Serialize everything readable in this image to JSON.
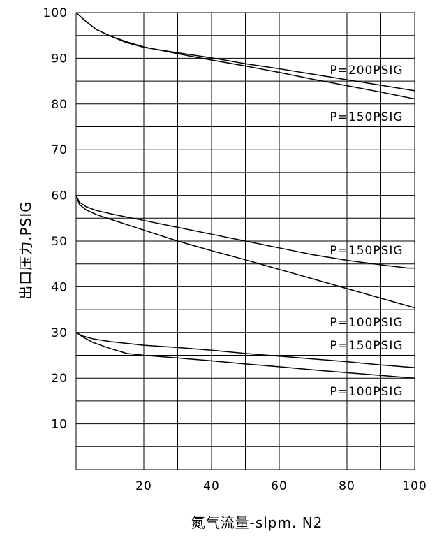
{
  "chart_data": {
    "type": "line",
    "title": "",
    "xlabel": "氮气流量-slpm. N2",
    "ylabel": "出口压力.PSIG",
    "xlim": [
      0,
      100
    ],
    "ylim": [
      0,
      100
    ],
    "x_ticks": [
      20,
      40,
      60,
      80,
      100
    ],
    "y_ticks": [
      10,
      20,
      30,
      40,
      50,
      60,
      70,
      80,
      90,
      100
    ],
    "grid": true,
    "legend": "none",
    "series": [
      {
        "label": "P=200PSIG",
        "points": [
          [
            0,
            100
          ],
          [
            3,
            98
          ],
          [
            6,
            96.3
          ],
          [
            10,
            94.9
          ],
          [
            15,
            93.4
          ],
          [
            20,
            92.4
          ],
          [
            30,
            91.2
          ],
          [
            40,
            90.1
          ],
          [
            50,
            88.8
          ],
          [
            60,
            87.7
          ],
          [
            70,
            86.5
          ],
          [
            80,
            85.3
          ],
          [
            90,
            84.1
          ],
          [
            100,
            82.9
          ]
        ]
      },
      {
        "label": "P=150PSIG",
        "points": [
          [
            0,
            100
          ],
          [
            3,
            98
          ],
          [
            6,
            96.3
          ],
          [
            10,
            94.9
          ],
          [
            15,
            93.6
          ],
          [
            20,
            92.5
          ],
          [
            30,
            91.0
          ],
          [
            40,
            89.6
          ],
          [
            50,
            88.3
          ],
          [
            60,
            86.9
          ],
          [
            70,
            85.4
          ],
          [
            80,
            84.0
          ],
          [
            90,
            82.6
          ],
          [
            100,
            81.1
          ]
        ]
      },
      {
        "label": "P=150PSIG",
        "points": [
          [
            0,
            60
          ],
          [
            1,
            58.5
          ],
          [
            3,
            57.5
          ],
          [
            6,
            56.7
          ],
          [
            10,
            56.0
          ],
          [
            20,
            54.5
          ],
          [
            30,
            53.0
          ],
          [
            40,
            51.5
          ],
          [
            50,
            50.0
          ],
          [
            60,
            48.5
          ],
          [
            70,
            47.0
          ],
          [
            80,
            45.8
          ],
          [
            90,
            44.8
          ],
          [
            98,
            44.1
          ],
          [
            100,
            44.1
          ]
        ]
      },
      {
        "label": "P=100PSIG",
        "points": [
          [
            0,
            60
          ],
          [
            1,
            58
          ],
          [
            3,
            56.8
          ],
          [
            6,
            55.8
          ],
          [
            10,
            54.8
          ],
          [
            20,
            52.4
          ],
          [
            30,
            50.0
          ],
          [
            40,
            47.9
          ],
          [
            50,
            45.9
          ],
          [
            60,
            43.8
          ],
          [
            70,
            41.7
          ],
          [
            80,
            39.6
          ],
          [
            90,
            37.5
          ],
          [
            100,
            35.4
          ]
        ]
      },
      {
        "label": "P=150PSIG",
        "points": [
          [
            0,
            30
          ],
          [
            2,
            29.2
          ],
          [
            5,
            28.6
          ],
          [
            10,
            28.0
          ],
          [
            20,
            27.2
          ],
          [
            30,
            26.7
          ],
          [
            40,
            26.1
          ],
          [
            50,
            25.4
          ],
          [
            60,
            24.8
          ],
          [
            70,
            24.2
          ],
          [
            80,
            23.6
          ],
          [
            90,
            22.9
          ],
          [
            100,
            22.3
          ]
        ]
      },
      {
        "label": "P=100PSIG",
        "points": [
          [
            0,
            30
          ],
          [
            2,
            29
          ],
          [
            5,
            27.8
          ],
          [
            10,
            26.5
          ],
          [
            15,
            25.4
          ],
          [
            20,
            25.0
          ],
          [
            30,
            24.4
          ],
          [
            40,
            23.8
          ],
          [
            50,
            23.1
          ],
          [
            60,
            22.5
          ],
          [
            70,
            21.8
          ],
          [
            80,
            21.2
          ],
          [
            90,
            20.6
          ],
          [
            100,
            20.0
          ]
        ]
      }
    ],
    "annotations": [
      "P=200PSIG",
      "P=150PSIG",
      "P=150PSIG",
      "P=100PSIG",
      "P=150PSIG",
      "P=100PSIG"
    ]
  }
}
